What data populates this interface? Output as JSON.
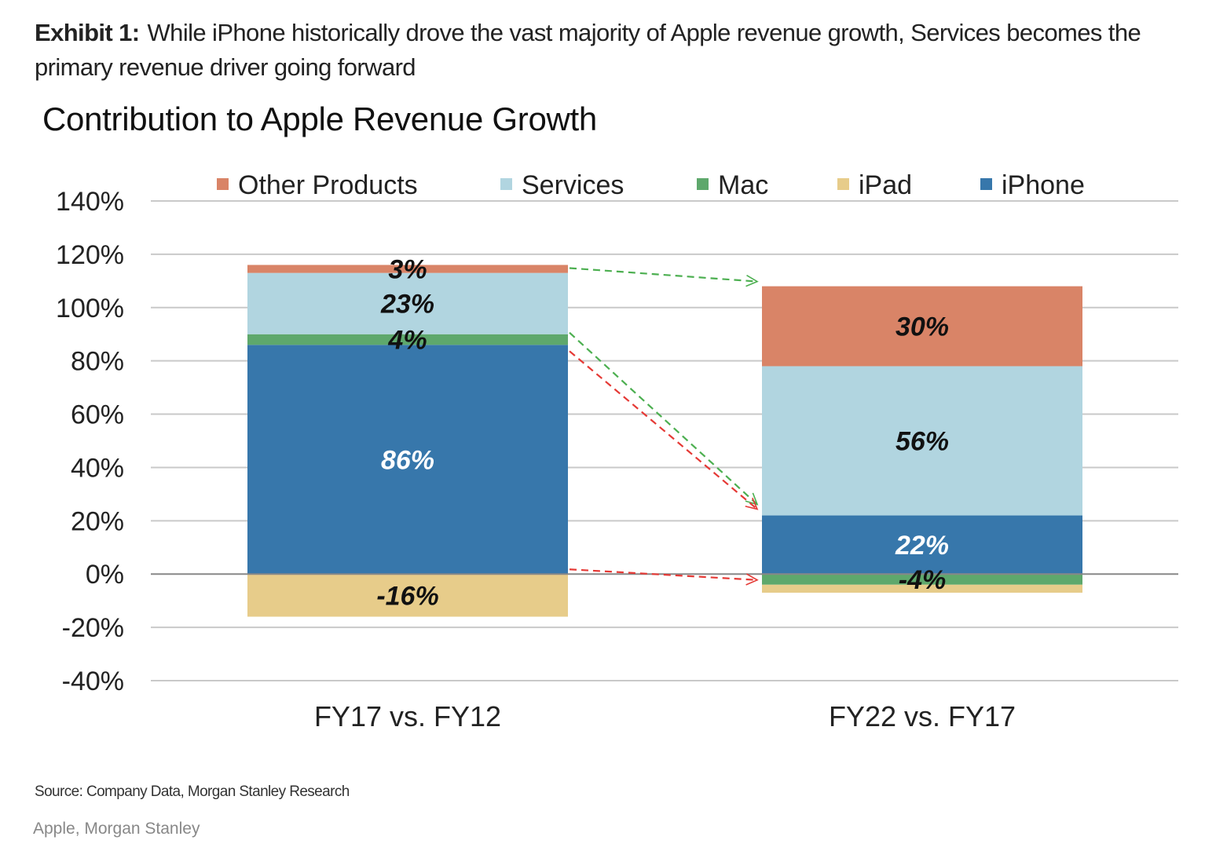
{
  "exhibit": {
    "label": "Exhibit 1:",
    "text": "While iPhone historically drove the vast majority of Apple revenue growth, Services becomes the primary revenue driver going forward"
  },
  "source": "Source: Company Data, Morgan Stanley Research",
  "credit": "Apple, Morgan Stanley",
  "chart_data": {
    "type": "bar",
    "stacked": true,
    "title": "Contribution to Apple Revenue Growth",
    "xlabel": "",
    "ylabel": "",
    "ylim": [
      -40,
      140
    ],
    "yticks": [
      140,
      120,
      100,
      80,
      60,
      40,
      20,
      0,
      -20,
      -40
    ],
    "ytick_labels": [
      "140%",
      "120%",
      "100%",
      "80%",
      "60%",
      "40%",
      "20%",
      "0%",
      "-20%",
      "-40%"
    ],
    "grid": true,
    "legend_position": "top",
    "categories": [
      "FY17 vs. FY12",
      "FY22 vs. FY17"
    ],
    "legend": [
      "Other Products",
      "Services",
      "Mac",
      "iPad",
      "iPhone"
    ],
    "series": [
      {
        "name": "iPhone",
        "color": "#3777ab",
        "values": [
          86,
          22
        ]
      },
      {
        "name": "Mac",
        "color": "#5ea86c",
        "values": [
          4,
          -4
        ]
      },
      {
        "name": "Services",
        "color": "#b1d5e0",
        "values": [
          23,
          56
        ]
      },
      {
        "name": "Other Products",
        "color": "#d98467",
        "values": [
          3,
          30
        ]
      },
      {
        "name": "iPad",
        "color": "#e7cc8a",
        "values": [
          -16,
          -3
        ]
      }
    ],
    "data_labels": [
      {
        "category": 0,
        "series": "Other Products",
        "text": "3%",
        "color": "#111111"
      },
      {
        "category": 0,
        "series": "Services",
        "text": "23%",
        "color": "#111111"
      },
      {
        "category": 0,
        "series": "Mac",
        "text": "4%",
        "color": "#111111"
      },
      {
        "category": 0,
        "series": "iPhone",
        "text": "86%",
        "color": "#ffffff"
      },
      {
        "category": 0,
        "series": "iPad",
        "text": "-16%",
        "color": "#111111"
      },
      {
        "category": 1,
        "series": "Other Products",
        "text": "30%",
        "color": "#111111"
      },
      {
        "category": 1,
        "series": "Services",
        "text": "56%",
        "color": "#111111"
      },
      {
        "category": 1,
        "series": "iPhone",
        "text": "22%",
        "color": "#ffffff"
      },
      {
        "category": 1,
        "series": "Mac",
        "text": "-4%",
        "color": "#111111"
      }
    ],
    "annotations": [
      {
        "type": "arrow",
        "style": "dashed",
        "color": "#4caf50",
        "from": {
          "category": 0,
          "series": "Other Products"
        },
        "to": {
          "category": 1,
          "series": "Other Products"
        }
      },
      {
        "type": "arrow",
        "style": "dashed",
        "color": "#4caf50",
        "from": {
          "category": 0,
          "series": "Services"
        },
        "to": {
          "category": 1,
          "series": "Services"
        }
      },
      {
        "type": "arrow",
        "style": "dashed",
        "color": "#e53935",
        "from": {
          "category": 0,
          "series": "iPhone"
        },
        "to": {
          "category": 1,
          "series": "iPhone"
        }
      },
      {
        "type": "arrow",
        "style": "dashed",
        "color": "#e53935",
        "from": {
          "category": 0,
          "series": "iPad"
        },
        "to": {
          "category": 1,
          "series": "iPad"
        }
      }
    ]
  }
}
